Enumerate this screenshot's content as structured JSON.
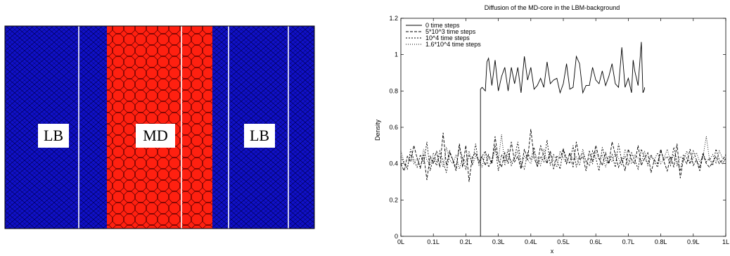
{
  "diagram": {
    "regions": [
      {
        "label": "LB",
        "color": "#1010c8"
      },
      {
        "label": "MD",
        "color": "#ff2010"
      },
      {
        "label": "LB",
        "color": "#1010c8"
      }
    ]
  },
  "chart_data": {
    "type": "line",
    "title": "Diffusion of the MD-core in the LBM-background",
    "xlabel": "x",
    "ylabel": "Density",
    "xlim": [
      0,
      1
    ],
    "ylim": [
      0,
      1.2
    ],
    "x_ticks": [
      "0L",
      "0.1L",
      "0.2L",
      "0.3L",
      "0.4L",
      "0.5L",
      "0.6L",
      "0.7L",
      "0.8L",
      "0.9L",
      "1L"
    ],
    "y_ticks": [
      "0",
      "0.2",
      "0.4",
      "0.6",
      "0.8",
      "1",
      "1.2"
    ],
    "grid": false,
    "legend_position": "top-left",
    "series": [
      {
        "name": "0 time steps",
        "dash": "solid",
        "x": [
          0.245,
          0.245,
          0.25,
          0.26,
          0.265,
          0.27,
          0.28,
          0.29,
          0.3,
          0.31,
          0.32,
          0.33,
          0.34,
          0.35,
          0.36,
          0.37,
          0.38,
          0.39,
          0.4,
          0.41,
          0.42,
          0.43,
          0.44,
          0.45,
          0.46,
          0.47,
          0.48,
          0.49,
          0.5,
          0.51,
          0.52,
          0.53,
          0.54,
          0.55,
          0.56,
          0.57,
          0.58,
          0.59,
          0.6,
          0.61,
          0.62,
          0.63,
          0.64,
          0.65,
          0.66,
          0.67,
          0.68,
          0.69,
          0.7,
          0.71,
          0.715,
          0.72,
          0.73,
          0.74,
          0.745,
          0.75,
          0.75
        ],
        "y": [
          0,
          0.81,
          0.82,
          0.8,
          0.96,
          0.98,
          0.83,
          0.97,
          0.8,
          0.88,
          0.93,
          0.8,
          0.93,
          0.84,
          0.93,
          0.79,
          0.99,
          0.86,
          0.93,
          0.81,
          0.83,
          0.87,
          0.82,
          0.96,
          0.84,
          0.86,
          0.87,
          0.79,
          0.84,
          0.95,
          0.81,
          0.82,
          0.99,
          0.95,
          0.79,
          0.83,
          0.83,
          0.93,
          0.86,
          0.84,
          0.91,
          0.83,
          0.88,
          0.95,
          0.84,
          0.82,
          1.04,
          0.82,
          0.87,
          0.79,
          0.97,
          0.91,
          0.83,
          1.07,
          0.79,
          0.81,
          0.82
        ]
      },
      {
        "name": "5*10^3 time steps",
        "dash": "4,2",
        "x": [
          0.0,
          0.01,
          0.02,
          0.03,
          0.04,
          0.05,
          0.06,
          0.07,
          0.08,
          0.09,
          0.1,
          0.11,
          0.12,
          0.13,
          0.14,
          0.15,
          0.16,
          0.17,
          0.18,
          0.19,
          0.2,
          0.21,
          0.22,
          0.23,
          0.24,
          0.25,
          0.26,
          0.27,
          0.28,
          0.29,
          0.3,
          0.31,
          0.32,
          0.33,
          0.34,
          0.35,
          0.36,
          0.37,
          0.38,
          0.39,
          0.4,
          0.41,
          0.42,
          0.43,
          0.44,
          0.45,
          0.46,
          0.47,
          0.48,
          0.49,
          0.5,
          0.51,
          0.52,
          0.53,
          0.54,
          0.55,
          0.56,
          0.57,
          0.58,
          0.59,
          0.6,
          0.61,
          0.62,
          0.63,
          0.64,
          0.65,
          0.66,
          0.67,
          0.68,
          0.69,
          0.7,
          0.71,
          0.72,
          0.73,
          0.74,
          0.75,
          0.76,
          0.77,
          0.78,
          0.79,
          0.8,
          0.81,
          0.82,
          0.83,
          0.84,
          0.85,
          0.86,
          0.87,
          0.88,
          0.89,
          0.9,
          0.91,
          0.92,
          0.93,
          0.94,
          0.95,
          0.96,
          0.97,
          0.98,
          0.99,
          1.0
        ],
        "y": [
          0.4,
          0.36,
          0.44,
          0.41,
          0.5,
          0.43,
          0.38,
          0.45,
          0.31,
          0.44,
          0.4,
          0.47,
          0.38,
          0.57,
          0.39,
          0.47,
          0.42,
          0.36,
          0.51,
          0.38,
          0.5,
          0.3,
          0.44,
          0.46,
          0.41,
          0.44,
          0.39,
          0.45,
          0.4,
          0.55,
          0.42,
          0.38,
          0.46,
          0.4,
          0.52,
          0.41,
          0.44,
          0.37,
          0.48,
          0.42,
          0.59,
          0.43,
          0.39,
          0.5,
          0.44,
          0.4,
          0.47,
          0.37,
          0.44,
          0.43,
          0.48,
          0.4,
          0.46,
          0.38,
          0.52,
          0.42,
          0.44,
          0.36,
          0.47,
          0.41,
          0.5,
          0.43,
          0.39,
          0.46,
          0.4,
          0.52,
          0.45,
          0.38,
          0.43,
          0.36,
          0.48,
          0.42,
          0.4,
          0.5,
          0.39,
          0.43,
          0.46,
          0.35,
          0.42,
          0.4,
          0.48,
          0.41,
          0.36,
          0.44,
          0.38,
          0.51,
          0.32,
          0.43,
          0.4,
          0.48,
          0.39,
          0.42,
          0.36,
          0.45,
          0.4,
          0.38,
          0.41,
          0.44,
          0.4,
          0.42,
          0.45
        ]
      },
      {
        "name": "10^4 time steps",
        "dash": "2,2",
        "x": [
          0.0,
          0.01,
          0.02,
          0.03,
          0.04,
          0.05,
          0.06,
          0.07,
          0.08,
          0.09,
          0.1,
          0.11,
          0.12,
          0.13,
          0.14,
          0.15,
          0.16,
          0.17,
          0.18,
          0.19,
          0.2,
          0.21,
          0.22,
          0.23,
          0.24,
          0.25,
          0.26,
          0.27,
          0.28,
          0.29,
          0.3,
          0.31,
          0.32,
          0.33,
          0.34,
          0.35,
          0.36,
          0.37,
          0.38,
          0.39,
          0.4,
          0.41,
          0.42,
          0.43,
          0.44,
          0.45,
          0.46,
          0.47,
          0.48,
          0.49,
          0.5,
          0.51,
          0.52,
          0.53,
          0.54,
          0.55,
          0.56,
          0.57,
          0.58,
          0.59,
          0.6,
          0.61,
          0.62,
          0.63,
          0.64,
          0.65,
          0.66,
          0.67,
          0.68,
          0.69,
          0.7,
          0.71,
          0.72,
          0.73,
          0.74,
          0.75,
          0.76,
          0.77,
          0.78,
          0.79,
          0.8,
          0.81,
          0.82,
          0.83,
          0.84,
          0.85,
          0.86,
          0.87,
          0.88,
          0.89,
          0.9,
          0.91,
          0.92,
          0.93,
          0.94,
          0.95,
          0.96,
          0.97,
          0.98,
          0.99,
          1.0
        ],
        "y": [
          0.44,
          0.4,
          0.37,
          0.48,
          0.42,
          0.38,
          0.45,
          0.4,
          0.52,
          0.36,
          0.43,
          0.39,
          0.47,
          0.41,
          0.35,
          0.46,
          0.42,
          0.38,
          0.49,
          0.43,
          0.37,
          0.45,
          0.4,
          0.51,
          0.39,
          0.44,
          0.47,
          0.38,
          0.42,
          0.5,
          0.36,
          0.45,
          0.41,
          0.48,
          0.39,
          0.43,
          0.52,
          0.4,
          0.37,
          0.46,
          0.42,
          0.49,
          0.38,
          0.44,
          0.41,
          0.53,
          0.39,
          0.45,
          0.42,
          0.37,
          0.48,
          0.43,
          0.4,
          0.5,
          0.38,
          0.44,
          0.46,
          0.41,
          0.39,
          0.47,
          0.43,
          0.36,
          0.49,
          0.42,
          0.4,
          0.45,
          0.38,
          0.51,
          0.41,
          0.44,
          0.39,
          0.46,
          0.42,
          0.37,
          0.48,
          0.43,
          0.4,
          0.45,
          0.41,
          0.38,
          0.47,
          0.42,
          0.44,
          0.39,
          0.49,
          0.41,
          0.36,
          0.45,
          0.43,
          0.4,
          0.47,
          0.42,
          0.38,
          0.46,
          0.41,
          0.43,
          0.39,
          0.48,
          0.42,
          0.4,
          0.43
        ]
      },
      {
        "name": "1.6*10^4 time steps",
        "dash": "1,2",
        "x": [
          0.0,
          0.01,
          0.02,
          0.03,
          0.04,
          0.05,
          0.06,
          0.07,
          0.08,
          0.09,
          0.1,
          0.11,
          0.12,
          0.13,
          0.14,
          0.15,
          0.16,
          0.17,
          0.18,
          0.19,
          0.2,
          0.21,
          0.22,
          0.23,
          0.24,
          0.25,
          0.26,
          0.27,
          0.28,
          0.29,
          0.3,
          0.31,
          0.32,
          0.33,
          0.34,
          0.35,
          0.36,
          0.37,
          0.38,
          0.39,
          0.4,
          0.41,
          0.42,
          0.43,
          0.44,
          0.45,
          0.46,
          0.47,
          0.48,
          0.49,
          0.5,
          0.51,
          0.52,
          0.53,
          0.54,
          0.55,
          0.56,
          0.57,
          0.58,
          0.59,
          0.6,
          0.61,
          0.62,
          0.63,
          0.64,
          0.65,
          0.66,
          0.67,
          0.68,
          0.69,
          0.7,
          0.71,
          0.72,
          0.73,
          0.74,
          0.75,
          0.76,
          0.77,
          0.78,
          0.79,
          0.8,
          0.81,
          0.82,
          0.83,
          0.84,
          0.85,
          0.86,
          0.87,
          0.88,
          0.89,
          0.9,
          0.91,
          0.92,
          0.93,
          0.94,
          0.95,
          0.96,
          0.97,
          0.98,
          0.99,
          1.0
        ],
        "y": [
          0.47,
          0.41,
          0.38,
          0.45,
          0.4,
          0.43,
          0.37,
          0.48,
          0.42,
          0.39,
          0.46,
          0.41,
          0.44,
          0.38,
          0.49,
          0.42,
          0.4,
          0.45,
          0.37,
          0.43,
          0.41,
          0.47,
          0.39,
          0.44,
          0.42,
          0.38,
          0.46,
          0.43,
          0.4,
          0.48,
          0.42,
          0.56,
          0.39,
          0.45,
          0.41,
          0.43,
          0.47,
          0.38,
          0.44,
          0.42,
          0.4,
          0.46,
          0.43,
          0.39,
          0.48,
          0.41,
          0.45,
          0.42,
          0.38,
          0.47,
          0.43,
          0.4,
          0.46,
          0.42,
          0.44,
          0.39,
          0.48,
          0.41,
          0.43,
          0.4,
          0.47,
          0.42,
          0.45,
          0.38,
          0.44,
          0.41,
          0.46,
          0.43,
          0.39,
          0.48,
          0.42,
          0.4,
          0.45,
          0.43,
          0.41,
          0.47,
          0.39,
          0.44,
          0.42,
          0.46,
          0.4,
          0.43,
          0.48,
          0.41,
          0.45,
          0.39,
          0.44,
          0.42,
          0.47,
          0.4,
          0.43,
          0.46,
          0.41,
          0.44,
          0.55,
          0.42,
          0.45,
          0.4,
          0.47,
          0.43,
          0.41
        ]
      }
    ]
  }
}
